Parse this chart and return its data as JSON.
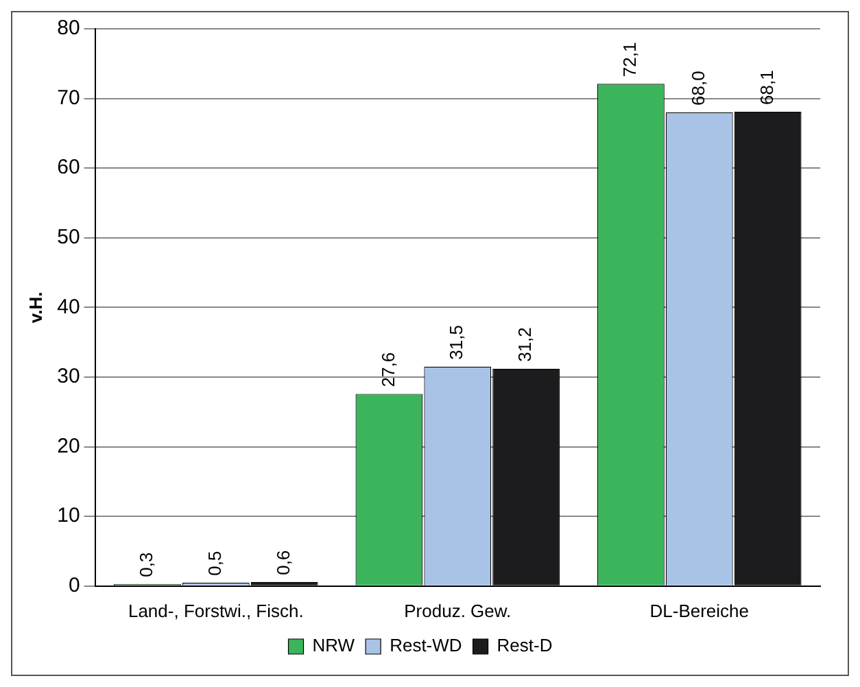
{
  "chart_data": {
    "type": "bar",
    "ylabel": "v.H.",
    "categories": [
      "Land-, Forstwi., Fisch.",
      "Produz. Gew.",
      "DL-Bereiche"
    ],
    "series": [
      {
        "name": "NRW",
        "color": "#3cb45c",
        "values": [
          0.3,
          27.6,
          72.1
        ]
      },
      {
        "name": "Rest-WD",
        "color": "#a8c3e6",
        "values": [
          0.5,
          31.5,
          68.0
        ]
      },
      {
        "name": "Rest-D",
        "color": "#1c1c1e",
        "values": [
          0.6,
          31.2,
          68.1
        ]
      }
    ],
    "value_labels": [
      [
        "0,3",
        "27,6",
        "72,1"
      ],
      [
        "0,5",
        "31,5",
        "68,0"
      ],
      [
        "0,6",
        "31,2",
        "68,1"
      ]
    ],
    "ylim": [
      0,
      80
    ],
    "yticks": [
      0,
      10,
      20,
      30,
      40,
      50,
      60,
      70,
      80
    ],
    "grid": "y",
    "legend": "bottom"
  }
}
